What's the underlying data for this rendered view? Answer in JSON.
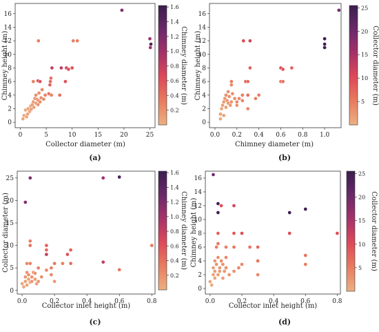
{
  "chart_data": [
    {
      "id": "a",
      "type": "scatter",
      "caption": "(a)",
      "xlabel": "Collector diameter (m)",
      "ylabel": "Chimney height (m)",
      "colorbar_label": "Chimney diameter (m)",
      "xlim": [
        -1,
        26
      ],
      "ylim": [
        -0.8,
        17.5
      ],
      "xticks": [
        0,
        5,
        10,
        15,
        20,
        25
      ],
      "yticks": [
        0,
        2,
        4,
        6,
        8,
        10,
        12,
        14,
        16
      ],
      "cbar_range": [
        0,
        1.62
      ],
      "cbar_ticks": [
        0.2,
        0.4,
        0.6,
        0.8,
        1.0,
        1.2,
        1.4,
        1.6
      ],
      "cbar_tick_labels": [
        "0.2",
        "0.4",
        "0.6",
        "0.8",
        "1.0",
        "1.2",
        "1.4",
        "1.6"
      ],
      "points": [
        [
          0.5,
          0.5,
          0.05
        ],
        [
          0.7,
          1.0,
          0.05
        ],
        [
          1.0,
          1.8,
          0.06
        ],
        [
          1.2,
          0.8,
          0.07
        ],
        [
          1.4,
          1.2,
          0.1
        ],
        [
          1.5,
          2.0,
          0.08
        ],
        [
          1.8,
          1.6,
          0.1
        ],
        [
          2.0,
          2.4,
          0.12
        ],
        [
          2.1,
          1.9,
          0.1
        ],
        [
          2.3,
          2.6,
          0.15
        ],
        [
          2.5,
          3.0,
          0.12
        ],
        [
          2.6,
          2.2,
          0.12
        ],
        [
          2.8,
          3.5,
          0.18
        ],
        [
          3.0,
          2.8,
          0.15
        ],
        [
          3.0,
          4.0,
          0.2
        ],
        [
          3.2,
          3.4,
          0.2
        ],
        [
          3.4,
          2.6,
          0.18
        ],
        [
          3.5,
          3.2,
          0.2
        ],
        [
          3.6,
          4.3,
          0.2
        ],
        [
          3.8,
          3.0,
          0.22
        ],
        [
          4.0,
          3.6,
          0.25
        ],
        [
          4.2,
          4.8,
          0.25
        ],
        [
          4.5,
          3.4,
          0.25
        ],
        [
          4.8,
          4.0,
          0.3
        ],
        [
          2.5,
          6.0,
          0.3
        ],
        [
          3.4,
          6.1,
          0.6
        ],
        [
          3.8,
          6.0,
          0.6
        ],
        [
          3.5,
          12.0,
          0.3
        ],
        [
          5.5,
          4.2,
          0.4
        ],
        [
          5.7,
          5.5,
          0.5
        ],
        [
          5.8,
          6.0,
          0.45
        ],
        [
          5.9,
          6.5,
          0.4
        ],
        [
          6.1,
          8.0,
          0.8
        ],
        [
          6.0,
          4.0,
          0.3
        ],
        [
          7.6,
          4.0,
          0.4
        ],
        [
          7.9,
          8.0,
          0.8
        ],
        [
          8.7,
          6.0,
          0.6
        ],
        [
          8.9,
          8.0,
          0.7
        ],
        [
          9.3,
          7.8,
          0.6
        ],
        [
          10.0,
          8.0,
          0.6
        ],
        [
          10.2,
          12.0,
          0.3
        ],
        [
          11.0,
          12.0,
          0.3
        ],
        [
          19.6,
          16.5,
          1.15
        ],
        [
          25.0,
          12.3,
          1.0
        ],
        [
          25.1,
          11.0,
          1.0
        ],
        [
          25.2,
          11.5,
          1.5
        ]
      ]
    },
    {
      "id": "b",
      "type": "scatter",
      "caption": "(b)",
      "xlabel": "Chimney diameter (m)",
      "ylabel": "Chimney height (m)",
      "colorbar_label": "Collector diameter (m)",
      "xlim": [
        -0.05,
        1.15
      ],
      "ylim": [
        -0.8,
        17.5
      ],
      "xticks": [
        0.0,
        0.2,
        0.4,
        0.6,
        0.8,
        1.0
      ],
      "yticks": [
        0,
        2,
        4,
        6,
        8,
        10,
        12,
        14,
        16
      ],
      "xtick_labels": [
        "0.0",
        "0.2",
        "0.4",
        "0.6",
        "0.8",
        "1.0"
      ],
      "cbar_range": [
        0,
        25.5
      ],
      "cbar_ticks": [
        5,
        10,
        15,
        20,
        25
      ],
      "cbar_tick_labels": [
        "5",
        "10",
        "15",
        "20",
        "25"
      ],
      "points": [
        [
          0.05,
          0.5,
          1.0
        ],
        [
          0.05,
          1.2,
          1.5
        ],
        [
          0.06,
          2.0,
          1.2
        ],
        [
          0.07,
          2.5,
          1.8
        ],
        [
          0.08,
          3.0,
          2.0
        ],
        [
          0.08,
          1.0,
          1.5
        ],
        [
          0.09,
          3.5,
          2.5
        ],
        [
          0.1,
          2.2,
          2.2
        ],
        [
          0.1,
          4.0,
          3.0
        ],
        [
          0.11,
          3.2,
          2.8
        ],
        [
          0.12,
          4.5,
          3.0
        ],
        [
          0.12,
          2.8,
          2.5
        ],
        [
          0.13,
          3.8,
          3.2
        ],
        [
          0.14,
          2.5,
          2.6
        ],
        [
          0.15,
          5.5,
          4.0
        ],
        [
          0.15,
          6.0,
          5.0
        ],
        [
          0.15,
          3.0,
          3.0
        ],
        [
          0.16,
          4.2,
          3.5
        ],
        [
          0.18,
          3.5,
          3.5
        ],
        [
          0.2,
          3.0,
          3.5
        ],
        [
          0.2,
          2.5,
          3.0
        ],
        [
          0.22,
          3.5,
          4.0
        ],
        [
          0.25,
          4.0,
          4.5
        ],
        [
          0.25,
          3.2,
          4.0
        ],
        [
          0.26,
          12.0,
          10.0
        ],
        [
          0.28,
          6.0,
          8.0
        ],
        [
          0.3,
          6.0,
          7.0
        ],
        [
          0.3,
          4.0,
          6.0
        ],
        [
          0.3,
          2.0,
          4.0
        ],
        [
          0.32,
          12.0,
          11.0
        ],
        [
          0.32,
          8.0,
          8.0
        ],
        [
          0.37,
          3.5,
          5.0
        ],
        [
          0.4,
          4.0,
          5.0
        ],
        [
          0.6,
          8.0,
          10.0
        ],
        [
          0.6,
          6.0,
          6.0
        ],
        [
          0.62,
          6.0,
          6.0
        ],
        [
          0.62,
          7.8,
          9.0
        ],
        [
          0.7,
          8.0,
          8.0
        ],
        [
          1.0,
          12.3,
          25.0
        ],
        [
          1.0,
          11.5,
          25.0
        ],
        [
          1.0,
          11.0,
          25.0
        ],
        [
          1.13,
          16.5,
          19.6
        ]
      ]
    },
    {
      "id": "c",
      "type": "scatter",
      "caption": "(c)",
      "xlabel": "Collector inlet height (m)",
      "ylabel": "Collector diameter (m)",
      "colorbar_label": "Chimney diameter (m)",
      "xlim": [
        -0.03,
        0.82
      ],
      "ylim": [
        -0.8,
        26.5
      ],
      "xticks": [
        0.0,
        0.2,
        0.4,
        0.6,
        0.8
      ],
      "yticks": [
        0,
        5,
        10,
        15,
        20,
        25
      ],
      "xtick_labels": [
        "0.0",
        "0.2",
        "0.4",
        "0.6",
        "0.8"
      ],
      "cbar_range": [
        0,
        1.62
      ],
      "cbar_ticks": [
        0.2,
        0.4,
        0.6,
        0.8,
        1.0,
        1.2,
        1.4,
        1.6
      ],
      "cbar_tick_labels": [
        "0.2",
        "0.4",
        "0.6",
        "0.8",
        "1.0",
        "1.2",
        "1.4",
        "1.6"
      ],
      "points": [
        [
          0.0,
          1.5,
          0.05
        ],
        [
          0.01,
          0.8,
          0.05
        ],
        [
          0.02,
          2.0,
          0.1
        ],
        [
          0.02,
          3.0,
          0.15
        ],
        [
          0.03,
          1.2,
          0.08
        ],
        [
          0.03,
          4.0,
          0.2
        ],
        [
          0.03,
          6.0,
          0.25
        ],
        [
          0.04,
          2.5,
          0.1
        ],
        [
          0.04,
          3.5,
          0.2
        ],
        [
          0.05,
          1.8,
          0.1
        ],
        [
          0.05,
          6.0,
          0.3
        ],
        [
          0.05,
          10.0,
          0.4
        ],
        [
          0.05,
          11.0,
          0.3
        ],
        [
          0.06,
          3.0,
          0.18
        ],
        [
          0.06,
          2.0,
          0.15
        ],
        [
          0.07,
          4.0,
          0.22
        ],
        [
          0.08,
          2.5,
          0.15
        ],
        [
          0.08,
          3.8,
          0.2
        ],
        [
          0.09,
          1.5,
          0.12
        ],
        [
          0.1,
          2.0,
          0.15
        ],
        [
          0.1,
          5.0,
          0.3
        ],
        [
          0.12,
          3.0,
          0.2
        ],
        [
          0.15,
          10.0,
          0.5
        ],
        [
          0.15,
          9.0,
          0.45
        ],
        [
          0.15,
          4.5,
          0.25
        ],
        [
          0.18,
          5.0,
          0.3
        ],
        [
          0.18,
          3.5,
          0.25
        ],
        [
          0.2,
          6.0,
          0.35
        ],
        [
          0.2,
          2.0,
          0.15
        ],
        [
          0.25,
          6.0,
          0.3
        ],
        [
          0.28,
          8.0,
          0.6
        ],
        [
          0.3,
          9.0,
          0.5
        ],
        [
          0.3,
          6.0,
          0.4
        ],
        [
          0.5,
          6.3,
          0.8
        ],
        [
          0.6,
          4.6,
          0.35
        ],
        [
          0.8,
          10.0,
          0.35
        ],
        [
          0.02,
          19.6,
          1.15
        ],
        [
          0.05,
          25.0,
          1.2
        ],
        [
          0.5,
          25.0,
          1.0
        ],
        [
          0.6,
          25.2,
          1.5
        ],
        [
          0.15,
          8.0,
          0.8
        ]
      ]
    },
    {
      "id": "d",
      "type": "scatter",
      "caption": "(d)",
      "xlabel": "Collector inlet height (m)",
      "ylabel": "Chimney height (m)",
      "colorbar_label": "Collector diameter (m)",
      "xlim": [
        -0.03,
        0.82
      ],
      "ylim": [
        -0.8,
        17.0
      ],
      "xticks": [
        0.0,
        0.2,
        0.4,
        0.6,
        0.8
      ],
      "yticks": [
        0,
        2,
        4,
        6,
        8,
        10,
        12,
        14,
        16
      ],
      "xtick_labels": [
        "0.0",
        "0.2",
        "0.4",
        "0.6",
        "0.8"
      ],
      "cbar_range": [
        0,
        25.5
      ],
      "cbar_ticks": [
        5,
        10,
        15,
        20,
        25
      ],
      "cbar_tick_labels": [
        "5",
        "10",
        "15",
        "20",
        "25"
      ],
      "points": [
        [
          0.0,
          1.0,
          1.0
        ],
        [
          0.01,
          0.5,
          0.8
        ],
        [
          0.02,
          2.0,
          1.5
        ],
        [
          0.02,
          3.0,
          2.0
        ],
        [
          0.03,
          1.5,
          1.2
        ],
        [
          0.03,
          4.0,
          2.5
        ],
        [
          0.03,
          2.5,
          2.0
        ],
        [
          0.04,
          3.5,
          3.0
        ],
        [
          0.04,
          6.0,
          5.0
        ],
        [
          0.05,
          2.0,
          1.8
        ],
        [
          0.05,
          4.5,
          3.0
        ],
        [
          0.05,
          8.0,
          8.0
        ],
        [
          0.05,
          6.5,
          5.5
        ],
        [
          0.06,
          3.0,
          2.5
        ],
        [
          0.06,
          2.5,
          2.2
        ],
        [
          0.07,
          4.0,
          3.5
        ],
        [
          0.07,
          12.0,
          10.0
        ],
        [
          0.08,
          3.5,
          3.0
        ],
        [
          0.08,
          1.5,
          2.0
        ],
        [
          0.09,
          2.5,
          2.5
        ],
        [
          0.1,
          3.0,
          3.0
        ],
        [
          0.1,
          4.5,
          4.0
        ],
        [
          0.1,
          6.0,
          5.0
        ],
        [
          0.12,
          2.0,
          2.5
        ],
        [
          0.15,
          12.0,
          11.0
        ],
        [
          0.15,
          8.0,
          9.0
        ],
        [
          0.15,
          6.0,
          5.5
        ],
        [
          0.18,
          3.0,
          4.0
        ],
        [
          0.2,
          8.0,
          10.0
        ],
        [
          0.2,
          3.5,
          4.0
        ],
        [
          0.25,
          6.0,
          6.0
        ],
        [
          0.3,
          6.0,
          7.0
        ],
        [
          0.3,
          4.0,
          6.0
        ],
        [
          0.3,
          2.0,
          4.0
        ],
        [
          0.5,
          11.0,
          25.0
        ],
        [
          0.6,
          11.5,
          25.0
        ],
        [
          0.5,
          8.0,
          10.0
        ],
        [
          0.6,
          4.8,
          6.0
        ],
        [
          0.6,
          3.5,
          5.0
        ],
        [
          0.8,
          8.0,
          10.0
        ],
        [
          0.02,
          16.5,
          19.6
        ],
        [
          0.05,
          12.3,
          25.0
        ],
        [
          0.05,
          11.0,
          25.0
        ],
        [
          0.15,
          2.5,
          3.0
        ]
      ]
    }
  ]
}
